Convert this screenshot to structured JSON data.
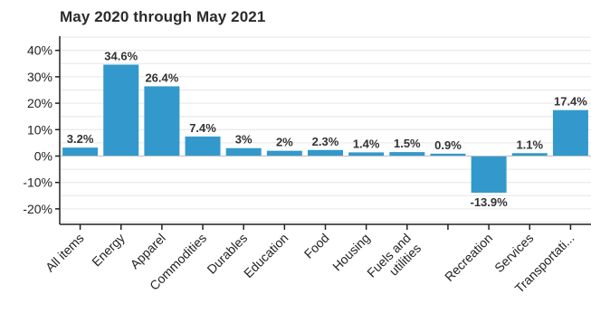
{
  "chart_data": {
    "type": "bar",
    "title": "May 2020 through May 2021",
    "xlabel": "",
    "ylabel": "",
    "categories": [
      "All items",
      "Energy",
      "Apparel",
      "Commodities",
      "Durables",
      "Education",
      "Food",
      "Housing",
      "Fuels and utilities",
      "",
      "Recreation",
      "Services",
      "Transportati..."
    ],
    "values": [
      3.2,
      34.6,
      26.4,
      7.4,
      3,
      2,
      2.3,
      1.4,
      1.5,
      0.9,
      -13.9,
      1.1,
      17.4
    ],
    "data_labels": [
      "3.2%",
      "34.6%",
      "26.4%",
      "7.4%",
      "3%",
      "2%",
      "2.3%",
      "1.4%",
      "1.5%",
      "0.9%",
      "-13.9%",
      "1.1%",
      "17.4%"
    ],
    "ylim": [
      -25,
      45
    ],
    "yticks": [
      40,
      30,
      20,
      10,
      0,
      -10,
      -20
    ],
    "ytick_labels": [
      "40%",
      "30%",
      "20%",
      "10%",
      "0%",
      "-10%",
      "-20%"
    ],
    "grid": true,
    "legend": "none",
    "bar_color": "#3399cc",
    "grid_color": "#e6e6e6",
    "axis_color": "#222222"
  }
}
